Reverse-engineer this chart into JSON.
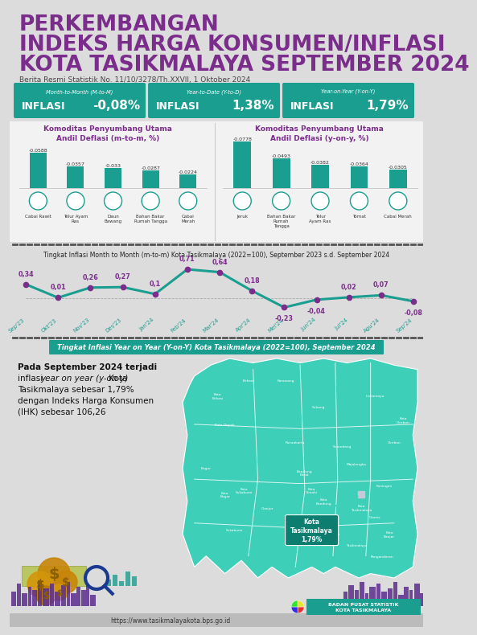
{
  "title_line1": "PERKEMBANGAN",
  "title_line2": "INDEKS HARGA KONSUMEN/INFLASI",
  "title_line3": "KOTA TASIKMALAYA SEPTEMBER 2024",
  "subtitle": "Berita Resmi Statistik No. 11/10/3278/Th.XXVII, 1 Oktober 2024",
  "title_color": "#7B2D8B",
  "subtitle_color": "#444444",
  "bg_color": "#DCDCDC",
  "box_bg": "#1A9E8F",
  "inflasi_boxes": [
    {
      "type": "Month-to-Month (M-to-M)",
      "label": "INFLASI",
      "value": "-0,08%"
    },
    {
      "type": "Year-to-Date (Y-to-D)",
      "label": "INFLASI",
      "value": "1,38%"
    },
    {
      "type": "Year-on-Year (Y-on-Y)",
      "label": "INFLASI",
      "value": "1,79%"
    }
  ],
  "mtm_title": "Komoditas Penyumbang Utama\nAndil Deflasi (m-to-m, %)",
  "mtm_categories": [
    "Cabai Rawit",
    "Telur Ayam\nRas",
    "Daun\nBawang",
    "Bahan Bakar\nRumah Tangga",
    "Cabai\nMerah"
  ],
  "mtm_values": [
    -0.0588,
    -0.0357,
    -0.033,
    -0.0287,
    -0.0224
  ],
  "yon_title": "Komoditas Penyumbang Utama\nAndil Deflasi (y-on-y, %)",
  "yon_categories": [
    "Jeruk",
    "Bahan Bakar\nRumah\nTangga",
    "Telur\nAyam Ras",
    "Tomat",
    "Cabai Merah"
  ],
  "yon_values": [
    -0.0778,
    -0.0493,
    -0.0382,
    -0.0364,
    -0.0305
  ],
  "bar_color": "#1A9E8F",
  "chart_title": "Tingkat Inflasi Month to Month (m-to-m) Kota Tasikmalaya (2022=100), September 2023 s.d. September 2024",
  "months": [
    "Sep'23",
    "Okt'23",
    "Nov'23",
    "Des'23",
    "Jan'24",
    "Feb'24",
    "Mar'24",
    "Apr'24",
    "Mei'24",
    "Jun'24",
    "Jul'24",
    "Agu'24",
    "Sep'24"
  ],
  "mtm_inflasi": [
    0.34,
    0.01,
    0.26,
    0.27,
    0.1,
    0.71,
    0.64,
    0.18,
    -0.23,
    -0.04,
    0.02,
    0.07,
    -0.08
  ],
  "line_color": "#1A9E8F",
  "dot_color": "#7B2D8B",
  "label_color": "#7B2D8B",
  "yoy_section_title": "Tingkat Inflasi Year on Year (Y-on-Y) Kota Tasikmalaya (2022=100), September 2024",
  "yoy_section_bg": "#1A9E8F",
  "map_text_line1": "Pada September 2024 terjadi",
  "map_text_line2": "inflasi year on year (y-on-y) Kota",
  "map_text_line3": "Tasikmalaya sebesar 1,79%",
  "map_text_line4": "dengan Indeks Harga Konsumen",
  "map_text_line5": "(IHK) sebesar 106,26",
  "tasikmalaya_label": "Kota\nTasikmalaya\n1,79%",
  "map_color": "#3ECFB8",
  "map_region_color": "#2BB8A4",
  "map_highlight_color": "#C8D0D8",
  "footer_text": "https://www.tasikmalayakota.bps.go.id",
  "footer_bg": "#DCDCDC",
  "city_color": "#5B2D8E",
  "bps_bg": "#1A9E8F"
}
